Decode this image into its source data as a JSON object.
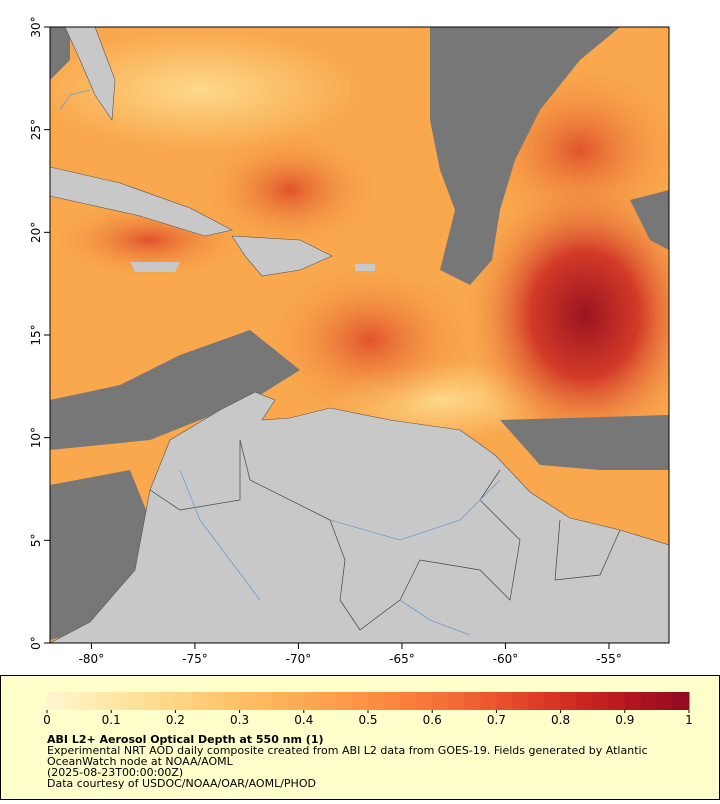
{
  "map": {
    "xlim": [
      -82,
      -52.1
    ],
    "ylim": [
      0,
      30
    ],
    "xticks": [
      {
        "value": -80,
        "label": "-80°"
      },
      {
        "value": -75,
        "label": "-75°"
      },
      {
        "value": -70,
        "label": "-70°"
      },
      {
        "value": -65,
        "label": "-65°"
      },
      {
        "value": -60,
        "label": "-60°"
      },
      {
        "value": -55,
        "label": "-55°"
      }
    ],
    "yticks": [
      {
        "value": 0,
        "label": "0°"
      },
      {
        "value": 5,
        "label": "5°"
      },
      {
        "value": 10,
        "label": "10°"
      },
      {
        "value": 15,
        "label": "15°"
      },
      {
        "value": 20,
        "label": "20°"
      },
      {
        "value": 25,
        "label": "25°"
      },
      {
        "value": 30,
        "label": "30°"
      }
    ]
  },
  "colorbar": {
    "lim": [
      0,
      1
    ],
    "ticks": [
      0,
      0.1,
      0.2,
      0.3,
      0.4,
      0.5,
      0.6,
      0.7,
      0.8,
      0.9,
      1
    ],
    "colors": [
      "#fff6d0",
      "#fee9a8",
      "#fed98a",
      "#fdc66e",
      "#fdb25a",
      "#fc9c4a",
      "#fb843e",
      "#f46a35",
      "#e5492a",
      "#d02b22",
      "#b3151f",
      "#8e0a22"
    ]
  },
  "caption": {
    "title": "ABI L2+ Aerosol Optical Depth at 550 nm (1)",
    "lines": [
      "Experimental NRT AOD daily composite created from ABI L2 data from GOES-19. Fields generated by Atlantic",
      "OceanWatch node at NOAA/AOML",
      "(2025-08-23T00:00:00Z)",
      "Data courtesy of USDOC/NOAA/OAR/AOML/PHOD"
    ]
  }
}
